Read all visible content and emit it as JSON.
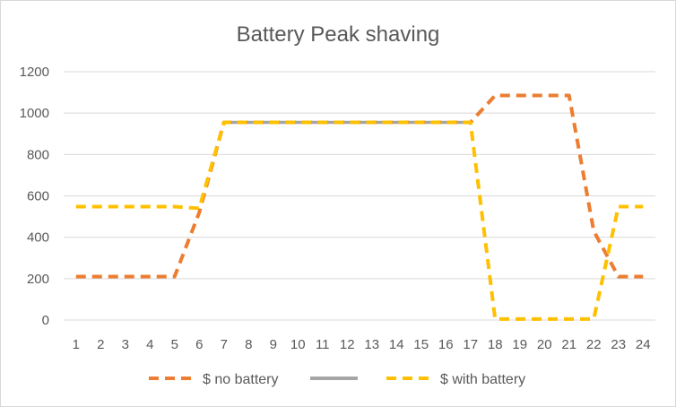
{
  "chart_data": {
    "type": "line",
    "title": "Battery Peak shaving",
    "xlabel": "",
    "ylabel": "",
    "x": [
      1,
      2,
      3,
      4,
      5,
      6,
      7,
      8,
      9,
      10,
      11,
      12,
      13,
      14,
      15,
      16,
      17,
      18,
      19,
      20,
      21,
      22,
      23,
      24
    ],
    "ylim": [
      0,
      1200
    ],
    "y_ticks": [
      0,
      200,
      400,
      600,
      800,
      1000,
      1200
    ],
    "grid": true,
    "legend_position": "bottom",
    "series": [
      {
        "name": "$ no battery",
        "color": "#ED7D31",
        "dash": "dashed",
        "values": [
          210,
          210,
          210,
          210,
          210,
          520,
          955,
          955,
          955,
          955,
          955,
          955,
          955,
          955,
          955,
          955,
          955,
          1085,
          1085,
          1085,
          1085,
          430,
          210,
          210
        ]
      },
      {
        "name": "",
        "color": "#A5A5A5",
        "dash": "solid",
        "values": [
          null,
          null,
          null,
          null,
          null,
          null,
          955,
          955,
          955,
          955,
          955,
          955,
          955,
          955,
          955,
          955,
          955,
          null,
          null,
          null,
          null,
          null,
          null,
          null
        ]
      },
      {
        "name": "$ with battery",
        "color": "#FFC000",
        "dash": "dashed",
        "values": [
          548,
          548,
          548,
          548,
          548,
          540,
          955,
          955,
          955,
          955,
          955,
          955,
          955,
          955,
          955,
          955,
          955,
          5,
          5,
          5,
          5,
          5,
          548,
          548
        ]
      }
    ]
  }
}
